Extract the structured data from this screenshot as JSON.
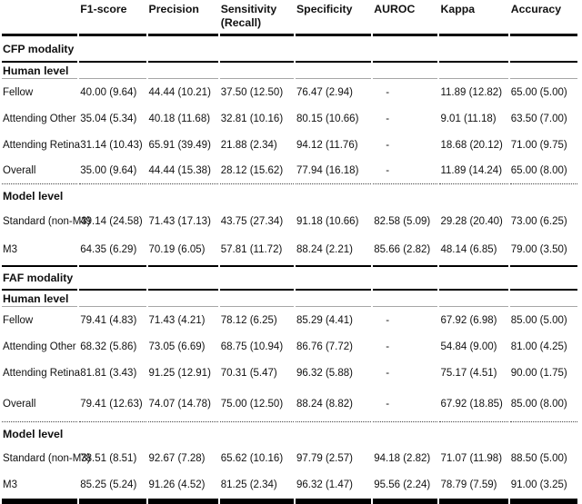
{
  "table": {
    "columns": [
      {
        "label": "F1-score",
        "sub": ""
      },
      {
        "label": "Precision",
        "sub": ""
      },
      {
        "label": "Sensitivity",
        "sub": "(Recall)"
      },
      {
        "label": "Specificity",
        "sub": ""
      },
      {
        "label": "AUROC",
        "sub": ""
      },
      {
        "label": "Kappa",
        "sub": ""
      },
      {
        "label": "Accuracy",
        "sub": ""
      }
    ],
    "sections": [
      {
        "title": "CFP modality",
        "groups": [
          {
            "title": "Human level",
            "rows": [
              {
                "label": "Fellow",
                "values": [
                  "40.00 (9.64)",
                  "44.44 (10.21)",
                  "37.50 (12.50)",
                  "76.47 (2.94)",
                  "-",
                  "11.89 (12.82)",
                  "65.00 (5.00)"
                ]
              },
              {
                "label": "Attending Other",
                "values": [
                  "35.04 (5.34)",
                  "40.18 (11.68)",
                  "32.81 (10.16)",
                  "80.15 (10.66)",
                  "-",
                  "9.01 (11.18)",
                  "63.50 (7.00)"
                ]
              },
              {
                "label": "Attending Retina",
                "values": [
                  "31.14 (10.43)",
                  "65.91 (39.49)",
                  "21.88 (2.34)",
                  "94.12 (11.76)",
                  "-",
                  "18.68 (20.12)",
                  "71.00 (9.75)"
                ]
              },
              {
                "label": "Overall",
                "values": [
                  "35.00 (9.64)",
                  "44.44 (15.38)",
                  "28.12 (15.62)",
                  "77.94 (16.18)",
                  "-",
                  "11.89 (14.24)",
                  "65.00 (8.00)"
                ]
              }
            ]
          },
          {
            "title": "Model level",
            "rows": [
              {
                "label": "Standard (non-M3)",
                "values": [
                  "49.14 (24.58)",
                  "71.43 (17.13)",
                  "43.75 (27.34)",
                  "91.18 (10.66)",
                  "82.58 (5.09)",
                  "29.28 (20.40)",
                  "73.00 (6.25)"
                ]
              },
              {
                "label": "M3",
                "values": [
                  "64.35 (6.29)",
                  "70.19 (6.05)",
                  "57.81 (11.72)",
                  "88.24 (2.21)",
                  "85.66 (2.82)",
                  "48.14 (6.85)",
                  "79.00 (3.50)"
                ]
              }
            ]
          }
        ]
      },
      {
        "title": "FAF modality",
        "groups": [
          {
            "title": "Human level",
            "rows": [
              {
                "label": "Fellow",
                "values": [
                  "79.41 (4.83)",
                  "71.43 (4.21)",
                  "78.12 (6.25)",
                  "85.29 (4.41)",
                  "-",
                  "67.92 (6.98)",
                  "85.00 (5.00)"
                ]
              },
              {
                "label": "Attending Other",
                "values": [
                  "68.32 (5.86)",
                  "73.05 (6.69)",
                  "68.75 (10.94)",
                  "86.76 (7.72)",
                  "-",
                  "54.84 (9.00)",
                  "81.00 (4.25)"
                ]
              },
              {
                "label": "Attending Retina",
                "values": [
                  "81.81 (3.43)",
                  "91.25 (12.91)",
                  "70.31 (5.47)",
                  "96.32 (5.88)",
                  "-",
                  "75.17 (4.51)",
                  "90.00 (1.75)"
                ]
              },
              {
                "label": "Overall",
                "values": [
                  "79.41 (12.63)",
                  "74.07 (14.78)",
                  "75.00 (12.50)",
                  "88.24 (8.82)",
                  "-",
                  "67.92 (18.85)",
                  "85.00 (8.00)"
                ]
              }
            ]
          },
          {
            "title": "Model level",
            "rows": [
              {
                "label": "Standard (non-M3)",
                "values": [
                  "78.51 (8.51)",
                  "92.67 (7.28)",
                  "65.62 (10.16)",
                  "97.79 (2.57)",
                  "94.18 (2.82)",
                  "71.07 (11.98)",
                  "88.50 (5.00)"
                ]
              },
              {
                "label": "M3",
                "values": [
                  "85.25 (5.24)",
                  "91.26 (4.52)",
                  "81.25 (2.34)",
                  "96.32 (1.47)",
                  "95.56 (2.24)",
                  "78.79 (7.59)",
                  "91.00 (3.25)"
                ]
              }
            ]
          }
        ]
      }
    ]
  }
}
